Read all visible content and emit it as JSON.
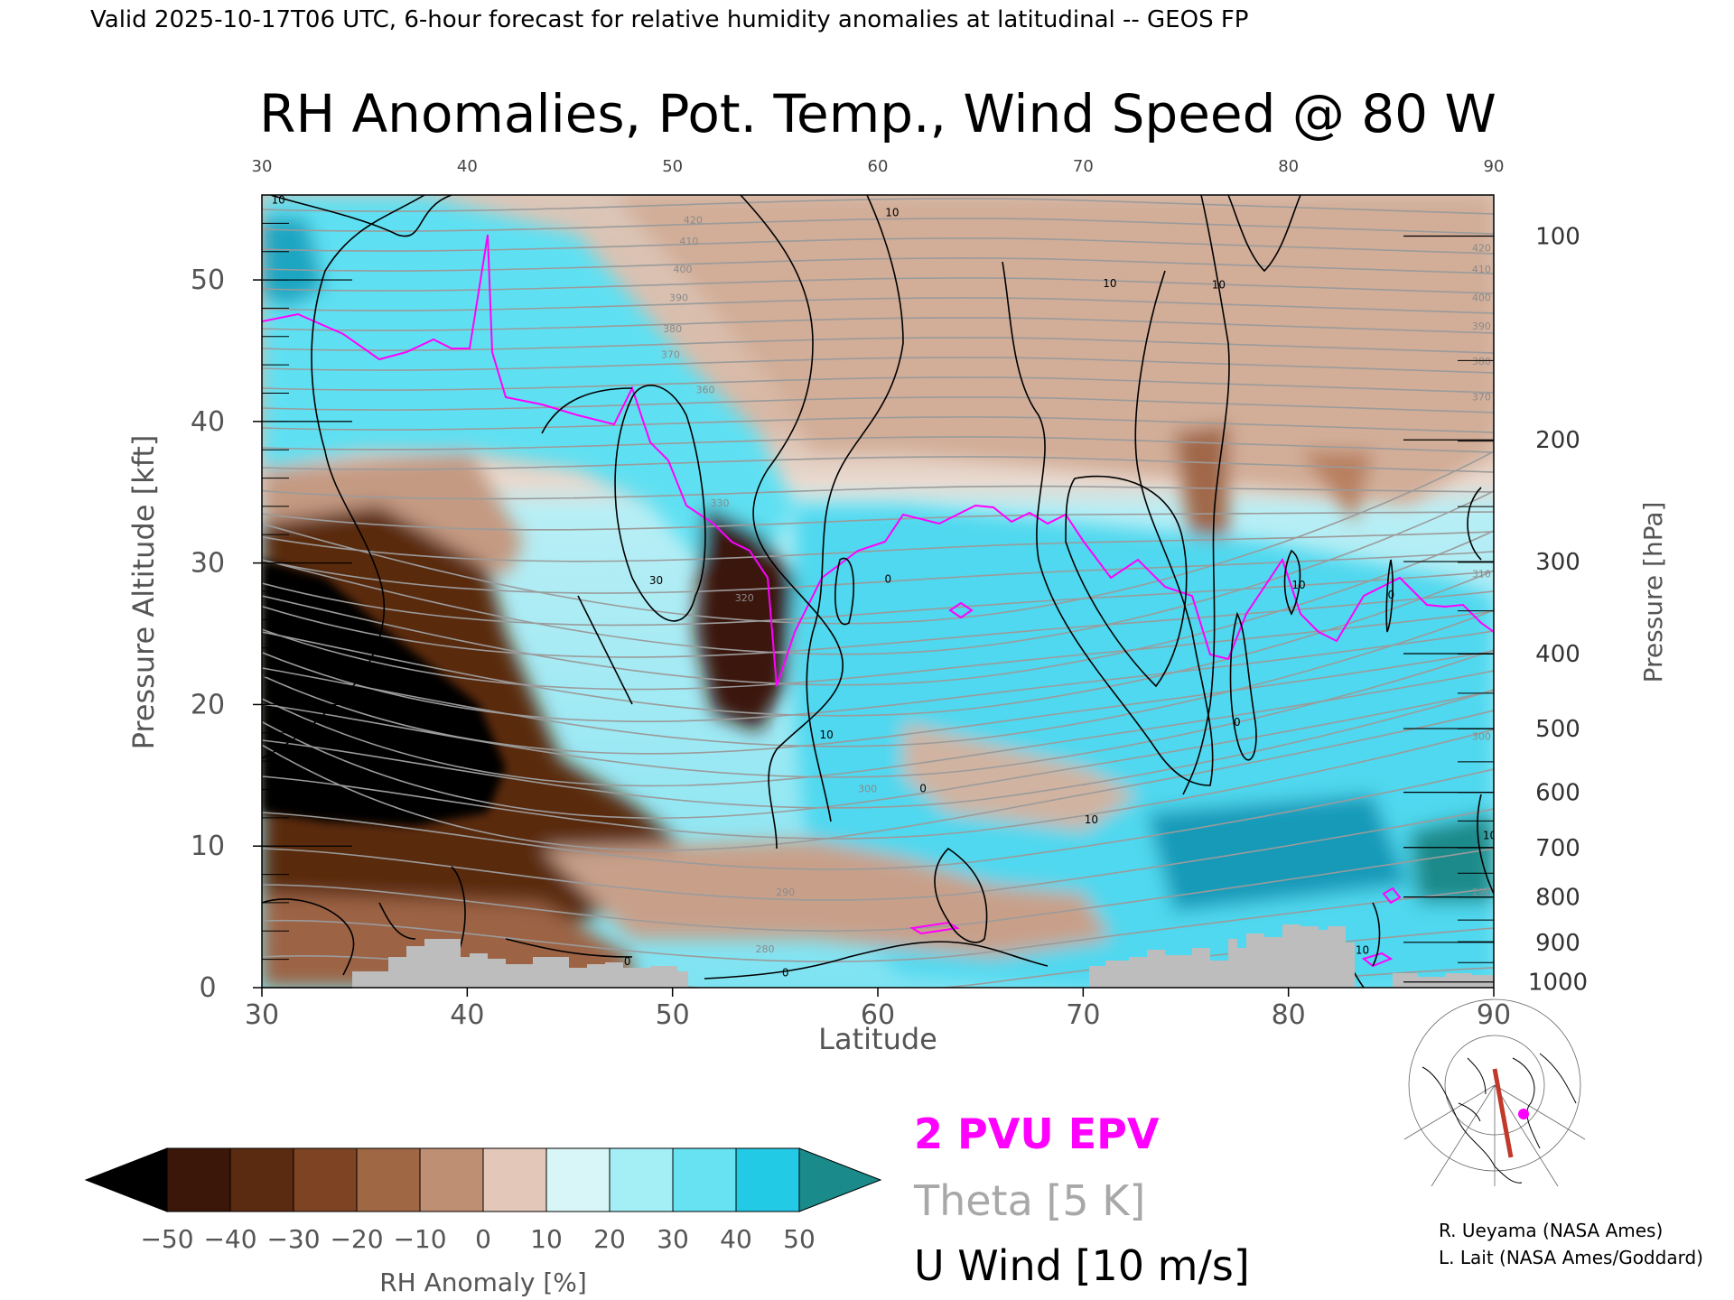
{
  "header": {
    "valid_line": "Valid 2025-10-17T06 UTC, 6-hour forecast for relative humidity anomalies at latitudinal -- GEOS FP",
    "title": "RH Anomalies, Pot. Temp., Wind Speed @ 80 W"
  },
  "chart_data": {
    "type": "heatmap",
    "xlabel": "Latitude",
    "ylabel": "Pressure Altitude [kft]",
    "y2label": "Pressure [hPa]",
    "xlim": [
      30,
      90
    ],
    "ylim": [
      0,
      56
    ],
    "x_ticks": [
      30,
      40,
      50,
      60,
      70,
      80,
      90
    ],
    "x_tick_labels": [
      "30",
      "40",
      "50",
      "60",
      "70",
      "80",
      "90"
    ],
    "y_ticks": [
      0,
      10,
      20,
      30,
      40,
      50
    ],
    "y_tick_labels": [
      "0",
      "10",
      "20",
      "30",
      "40",
      "50"
    ],
    "pressure_ticks": [
      {
        "hpa": 100,
        "kft": 53.1,
        "label": "100"
      },
      {
        "hpa": 200,
        "kft": 38.7,
        "label": "200"
      },
      {
        "hpa": 300,
        "kft": 30.1,
        "label": "300"
      },
      {
        "hpa": 400,
        "kft": 23.6,
        "label": "400"
      },
      {
        "hpa": 500,
        "kft": 18.3,
        "label": "500"
      },
      {
        "hpa": 600,
        "kft": 13.8,
        "label": "600"
      },
      {
        "hpa": 700,
        "kft": 9.9,
        "label": "700"
      },
      {
        "hpa": 800,
        "kft": 6.4,
        "label": "800"
      },
      {
        "hpa": 900,
        "kft": 3.2,
        "label": "900"
      },
      {
        "hpa": 1000,
        "kft": 0.4,
        "label": "1000"
      }
    ],
    "theta_labels": [
      {
        "x": 51,
        "y": 54,
        "text": "420"
      },
      {
        "x": 50.8,
        "y": 52.5,
        "text": "410"
      },
      {
        "x": 50.5,
        "y": 50.5,
        "text": "400"
      },
      {
        "x": 50.3,
        "y": 48.5,
        "text": "390"
      },
      {
        "x": 50,
        "y": 46.3,
        "text": "380"
      },
      {
        "x": 49.9,
        "y": 44.5,
        "text": "370"
      },
      {
        "x": 51.6,
        "y": 42,
        "text": "360"
      },
      {
        "x": 52.3,
        "y": 34,
        "text": "330"
      },
      {
        "x": 53.5,
        "y": 27.3,
        "text": "320"
      },
      {
        "x": 59.5,
        "y": 13.8,
        "text": "300"
      },
      {
        "x": 55.5,
        "y": 6.5,
        "text": "290"
      },
      {
        "x": 54.5,
        "y": 2.5,
        "text": "280"
      },
      {
        "x": 89.4,
        "y": 52,
        "text": "420"
      },
      {
        "x": 89.4,
        "y": 50.5,
        "text": "410"
      },
      {
        "x": 89.4,
        "y": 48.5,
        "text": "400"
      },
      {
        "x": 89.4,
        "y": 46.5,
        "text": "390"
      },
      {
        "x": 89.4,
        "y": 44,
        "text": "380"
      },
      {
        "x": 89.4,
        "y": 41.5,
        "text": "370"
      },
      {
        "x": 89.4,
        "y": 29,
        "text": "310"
      },
      {
        "x": 89.4,
        "y": 17.5,
        "text": "300"
      },
      {
        "x": 89.4,
        "y": 6.5,
        "text": "290"
      }
    ],
    "wind_labels": [
      {
        "x": 30.8,
        "y": 55.4,
        "text": "10"
      },
      {
        "x": 60.7,
        "y": 54.5,
        "text": "10"
      },
      {
        "x": 71.3,
        "y": 49.5,
        "text": "10"
      },
      {
        "x": 76.6,
        "y": 49.4,
        "text": "10"
      },
      {
        "x": 49.2,
        "y": 28.5,
        "text": "30"
      },
      {
        "x": 60.5,
        "y": 28.6,
        "text": "0"
      },
      {
        "x": 80.5,
        "y": 28.2,
        "text": "10"
      },
      {
        "x": 85,
        "y": 27.5,
        "text": "0"
      },
      {
        "x": 57.5,
        "y": 17.6,
        "text": "10"
      },
      {
        "x": 62.2,
        "y": 13.8,
        "text": "0"
      },
      {
        "x": 70.4,
        "y": 11.6,
        "text": "10"
      },
      {
        "x": 77.5,
        "y": 18.5,
        "text": "0"
      },
      {
        "x": 47.8,
        "y": 1.6,
        "text": "0"
      },
      {
        "x": 55.5,
        "y": 0.8,
        "text": "0"
      },
      {
        "x": 83.6,
        "y": 2.4,
        "text": "10"
      },
      {
        "x": 89.8,
        "y": 10.5,
        "text": "10"
      }
    ],
    "colorbar": {
      "label": "RH Anomaly [%]",
      "tick_labels": [
        "−50",
        "−40",
        "−30",
        "−20",
        "−10",
        "0",
        "10",
        "20",
        "30",
        "40",
        "50"
      ],
      "colors": [
        "#3a1708",
        "#5a2a11",
        "#7d4322",
        "#a06745",
        "#bf8f74",
        "#e3c8b9",
        "#d8f6f8",
        "#a4eef6",
        "#66e2f2",
        "#22cae6",
        "#0a9ab8"
      ],
      "under_color": "#000000",
      "over_color": "#1a8a8a"
    },
    "legend": {
      "epv": "2 PVU EPV",
      "theta": "Theta [5 K]",
      "wind": "U Wind [10 m/s]",
      "epv_color": "#ff00ff",
      "theta_color": "#a8a8a8",
      "wind_color": "#000000"
    }
  },
  "credits": {
    "line1": "R. Ueyama (NASA Ames)",
    "line2": "L. Lait (NASA Ames/Goddard)"
  }
}
